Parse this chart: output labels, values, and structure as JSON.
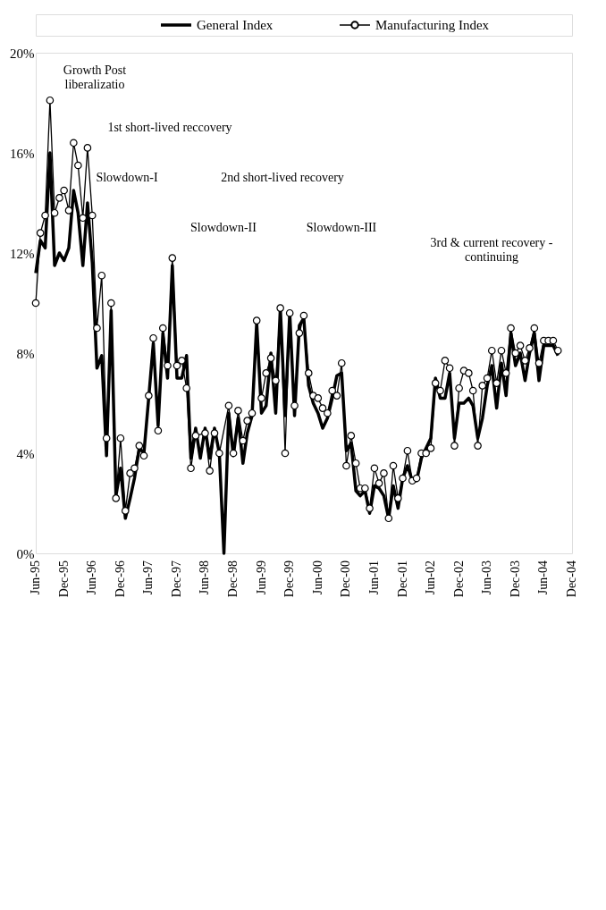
{
  "chart_data": {
    "type": "line",
    "xlim": [
      "1995-06",
      "2004-12"
    ],
    "xticks": [
      {
        "value": "1995-06",
        "label": "Jun-95"
      },
      {
        "value": "1995-12",
        "label": "Dec-95"
      },
      {
        "value": "1996-06",
        "label": "Jun-96"
      },
      {
        "value": "1996-12",
        "label": "Dec-96"
      },
      {
        "value": "1997-06",
        "label": "Jun-97"
      },
      {
        "value": "1997-12",
        "label": "Dec-97"
      },
      {
        "value": "1998-06",
        "label": "Jun-98"
      },
      {
        "value": "1998-12",
        "label": "Dec-98"
      },
      {
        "value": "1999-06",
        "label": "Jun-99"
      },
      {
        "value": "1999-12",
        "label": "Dec-99"
      },
      {
        "value": "2000-06",
        "label": "Jun-00"
      },
      {
        "value": "2000-12",
        "label": "Dec-00"
      },
      {
        "value": "2001-06",
        "label": "Jun-01"
      },
      {
        "value": "2001-12",
        "label": "Dec-01"
      },
      {
        "value": "2002-06",
        "label": "Jun-02"
      },
      {
        "value": "2002-12",
        "label": "Dec-02"
      },
      {
        "value": "2003-06",
        "label": "Jun-03"
      },
      {
        "value": "2003-12",
        "label": "Dec-03"
      },
      {
        "value": "2004-06",
        "label": "Jun-04"
      },
      {
        "value": "2004-12",
        "label": "Dec-04"
      }
    ],
    "ylim": [
      0,
      20
    ],
    "yticks": [
      {
        "value": 0,
        "label": "0%"
      },
      {
        "value": 4,
        "label": "4%"
      },
      {
        "value": 8,
        "label": "8%"
      },
      {
        "value": 12,
        "label": "12%"
      },
      {
        "value": 16,
        "label": "16%"
      },
      {
        "value": 20,
        "label": "20%"
      }
    ],
    "grid": false,
    "legend": "top",
    "line_style": "solid",
    "series": [
      {
        "name": "General Index",
        "color": "#000000",
        "marker": "none",
        "x": [
          "1995-06",
          "1995-07",
          "1995-08",
          "1995-09",
          "1995-10",
          "1995-11",
          "1995-12",
          "1996-01",
          "1996-02",
          "1996-03",
          "1996-04",
          "1996-05",
          "1996-06",
          "1996-07",
          "1996-08",
          "1996-09",
          "1996-10",
          "1996-11",
          "1996-12",
          "1997-01",
          "1997-02",
          "1997-03",
          "1997-04",
          "1997-05",
          "1997-06",
          "1997-07",
          "1997-08",
          "1997-09",
          "1997-10",
          "1997-11",
          "1997-12",
          "1998-01",
          "1998-02",
          "1998-03",
          "1998-04",
          "1998-05",
          "1998-06",
          "1998-07",
          "1998-08",
          "1998-09",
          "1998-10",
          "1998-11",
          "1998-12",
          "1999-01",
          "1999-02",
          "1999-03",
          "1999-04",
          "1999-05",
          "1999-06",
          "1999-07",
          "1999-08",
          "1999-09",
          "1999-10",
          "1999-11",
          "1999-12",
          "2000-01",
          "2000-02",
          "2000-03",
          "2000-04",
          "2000-05",
          "2000-06",
          "2000-07",
          "2000-08",
          "2000-09",
          "2000-10",
          "2000-11",
          "2000-12",
          "2001-01",
          "2001-02",
          "2001-03",
          "2001-04",
          "2001-05",
          "2001-06",
          "2001-07",
          "2001-08",
          "2001-09",
          "2001-10",
          "2001-11",
          "2001-12",
          "2002-01",
          "2002-02",
          "2002-03",
          "2002-04",
          "2002-05",
          "2002-06",
          "2002-07",
          "2002-08",
          "2002-09",
          "2002-10",
          "2002-11",
          "2002-12",
          "2003-01",
          "2003-02",
          "2003-03",
          "2003-04",
          "2003-05",
          "2003-06",
          "2003-07",
          "2003-08",
          "2003-09",
          "2003-10",
          "2003-11",
          "2003-12",
          "2004-01",
          "2004-02",
          "2004-03",
          "2004-04",
          "2004-05",
          "2004-06",
          "2004-07",
          "2004-08",
          "2004-09"
        ],
        "values": [
          11.2,
          12.5,
          12.2,
          16.0,
          11.5,
          12.0,
          11.7,
          12.2,
          14.5,
          13.6,
          11.5,
          14.0,
          11.6,
          7.4,
          7.9,
          3.9,
          9.7,
          2.3,
          3.4,
          1.4,
          2.2,
          3.0,
          4.2,
          4.0,
          6.2,
          8.4,
          5.1,
          8.8,
          7.0,
          11.5,
          7.0,
          7.0,
          7.9,
          3.8,
          5.0,
          3.8,
          5.0,
          3.8,
          5.0,
          4.0,
          0.0,
          5.6,
          3.9,
          5.4,
          3.6,
          4.8,
          5.5,
          9.2,
          5.6,
          5.9,
          8.0,
          5.6,
          9.8,
          5.5,
          9.6,
          5.5,
          9.1,
          9.4,
          6.7,
          6.0,
          5.6,
          5.0,
          5.4,
          6.2,
          7.1,
          7.2,
          4.1,
          4.4,
          2.5,
          2.3,
          2.5,
          1.6,
          2.7,
          2.6,
          2.3,
          1.4,
          2.7,
          1.8,
          3.0,
          3.5,
          2.9,
          2.9,
          3.8,
          4.2,
          4.6,
          7.0,
          6.2,
          6.2,
          7.2,
          4.6,
          6.0,
          6.0,
          6.2,
          5.9,
          4.6,
          5.4,
          6.7,
          7.5,
          5.8,
          7.6,
          6.3,
          8.8,
          7.5,
          8.0,
          6.9,
          8.0,
          8.8,
          6.9,
          8.3,
          8.3,
          8.3,
          7.9
        ]
      },
      {
        "name": "Manufacturing Index",
        "color": "#000000",
        "marker": "circle",
        "x": [
          "1995-06",
          "1995-07",
          "1995-08",
          "1995-09",
          "1995-10",
          "1995-11",
          "1995-12",
          "1996-01",
          "1996-02",
          "1996-03",
          "1996-04",
          "1996-05",
          "1996-06",
          "1996-07",
          "1996-08",
          "1996-09",
          "1996-10",
          "1996-11",
          "1996-12",
          "1997-01",
          "1997-02",
          "1997-03",
          "1997-04",
          "1997-05",
          "1997-06",
          "1997-07",
          "1997-08",
          "1997-09",
          "1997-10",
          "1997-11",
          "1997-12",
          "1998-01",
          "1998-02",
          "1998-03",
          "1998-04",
          "1998-06",
          "1998-07",
          "1998-08",
          "1998-09",
          "1998-11",
          "1998-12",
          "1999-01",
          "1999-02",
          "1999-03",
          "1999-04",
          "1999-05",
          "1999-06",
          "1999-07",
          "1999-08",
          "1999-09",
          "1999-10",
          "1999-11",
          "1999-12",
          "2000-01",
          "2000-02",
          "2000-03",
          "2000-04",
          "2000-05",
          "2000-06",
          "2000-07",
          "2000-08",
          "2000-09",
          "2000-10",
          "2000-11",
          "2000-12",
          "2001-01",
          "2001-02",
          "2001-03",
          "2001-04",
          "2001-05",
          "2001-06",
          "2001-07",
          "2001-08",
          "2001-09",
          "2001-10",
          "2001-11",
          "2001-12",
          "2002-01",
          "2002-02",
          "2002-03",
          "2002-04",
          "2002-05",
          "2002-06",
          "2002-07",
          "2002-08",
          "2002-09",
          "2002-10",
          "2002-11",
          "2002-12",
          "2003-01",
          "2003-02",
          "2003-03",
          "2003-04",
          "2003-05",
          "2003-06",
          "2003-07",
          "2003-08",
          "2003-09",
          "2003-10",
          "2003-11",
          "2003-12",
          "2004-01",
          "2004-02",
          "2004-03",
          "2004-04",
          "2004-05",
          "2004-06",
          "2004-07",
          "2004-08",
          "2004-09"
        ],
        "values": [
          10.0,
          12.8,
          13.5,
          18.1,
          13.6,
          14.2,
          14.5,
          13.7,
          16.4,
          15.5,
          13.4,
          16.2,
          13.5,
          9.0,
          11.1,
          4.6,
          10.0,
          2.2,
          4.6,
          1.7,
          3.2,
          3.4,
          4.3,
          3.9,
          6.3,
          8.6,
          4.9,
          9.0,
          7.5,
          11.8,
          7.5,
          7.7,
          6.6,
          3.4,
          4.7,
          4.8,
          3.3,
          4.8,
          4.0,
          5.9,
          4.0,
          5.7,
          4.5,
          5.3,
          5.6,
          9.3,
          6.2,
          7.2,
          7.8,
          6.9,
          9.8,
          4.0,
          9.6,
          5.9,
          8.8,
          9.5,
          7.2,
          6.3,
          6.2,
          5.8,
          5.6,
          6.5,
          6.3,
          7.6,
          3.5,
          4.7,
          3.6,
          2.6,
          2.6,
          1.8,
          3.4,
          2.8,
          3.2,
          1.4,
          3.5,
          2.2,
          3.0,
          4.1,
          2.9,
          3.0,
          4.0,
          4.0,
          4.2,
          6.8,
          6.5,
          7.7,
          7.4,
          4.3,
          6.6,
          7.3,
          7.2,
          6.5,
          4.3,
          6.7,
          7.0,
          8.1,
          6.8,
          8.1,
          7.2,
          9.0,
          8.0,
          8.3,
          7.7,
          8.2,
          9.0,
          7.6,
          8.5,
          8.5,
          8.5,
          8.1
        ]
      }
    ],
    "annotations": [
      "Growth Post\nliberalizatio",
      "Slowdown-I",
      "1st short-lived reccovery",
      "Slowdown-II",
      "2nd short-lived recovery",
      "Slowdown-III",
      "3rd & current recovery -\ncontinuing"
    ]
  }
}
